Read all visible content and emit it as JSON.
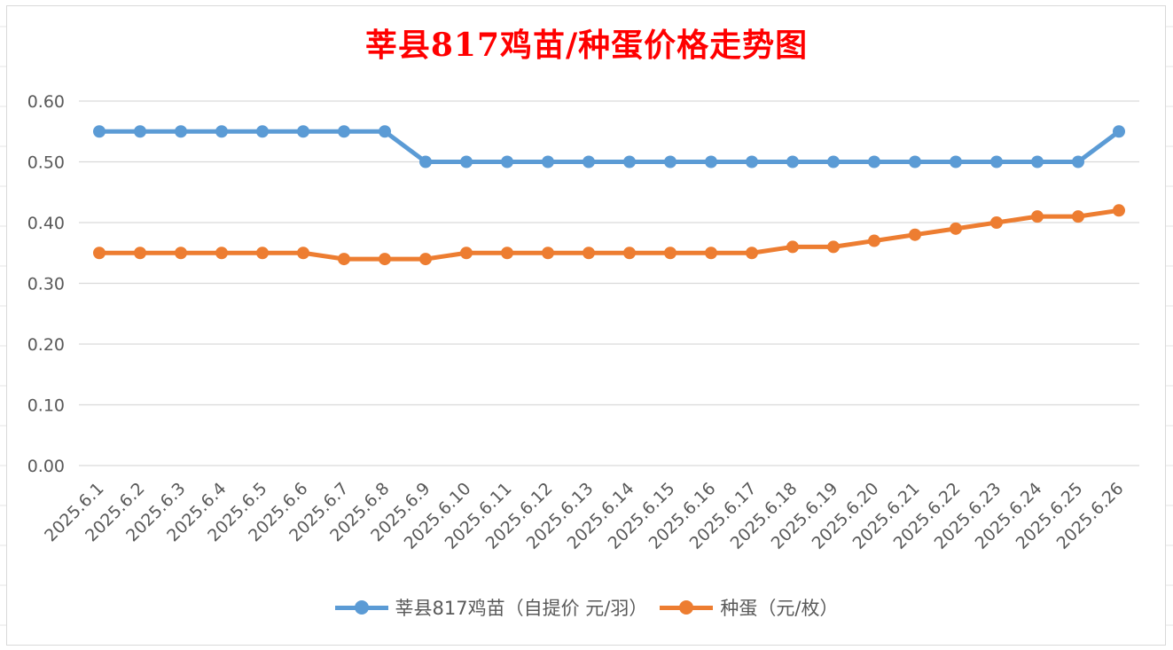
{
  "colors": {
    "series1": "#5b9bd5",
    "series2": "#ed7d31",
    "title": "#ff0000",
    "grid": "#d9d9d9",
    "text": "#595959"
  },
  "chart_data": {
    "type": "line",
    "title": "莘县817鸡苗/种蛋价格走势图",
    "xlabel": "",
    "ylabel": "",
    "ylim": [
      0,
      0.6
    ],
    "yticks": [
      "0.00",
      "0.10",
      "0.20",
      "0.30",
      "0.40",
      "0.50",
      "0.60"
    ],
    "grid": true,
    "legend_position": "bottom",
    "categories": [
      "2025.6.1",
      "2025.6.2",
      "2025.6.3",
      "2025.6.4",
      "2025.6.5",
      "2025.6.6",
      "2025.6.7",
      "2025.6.8",
      "2025.6.9",
      "2025.6.10",
      "2025.6.11",
      "2025.6.12",
      "2025.6.13",
      "2025.6.14",
      "2025.6.15",
      "2025.6.16",
      "2025.6.17",
      "2025.6.18",
      "2025.6.19",
      "2025.6.20",
      "2025.6.21",
      "2025.6.22",
      "2025.6.23",
      "2025.6.24",
      "2025.6.25",
      "2025.6.26"
    ],
    "series": [
      {
        "name": "莘县817鸡苗（自提价 元/羽）",
        "values": [
          0.55,
          0.55,
          0.55,
          0.55,
          0.55,
          0.55,
          0.55,
          0.55,
          0.5,
          0.5,
          0.5,
          0.5,
          0.5,
          0.5,
          0.5,
          0.5,
          0.5,
          0.5,
          0.5,
          0.5,
          0.5,
          0.5,
          0.5,
          0.5,
          0.5,
          0.55
        ]
      },
      {
        "name": "种蛋（元/枚）",
        "values": [
          0.35,
          0.35,
          0.35,
          0.35,
          0.35,
          0.35,
          0.34,
          0.34,
          0.34,
          0.35,
          0.35,
          0.35,
          0.35,
          0.35,
          0.35,
          0.35,
          0.35,
          0.36,
          0.36,
          0.37,
          0.38,
          0.39,
          0.4,
          0.41,
          0.41,
          0.42
        ]
      }
    ]
  }
}
